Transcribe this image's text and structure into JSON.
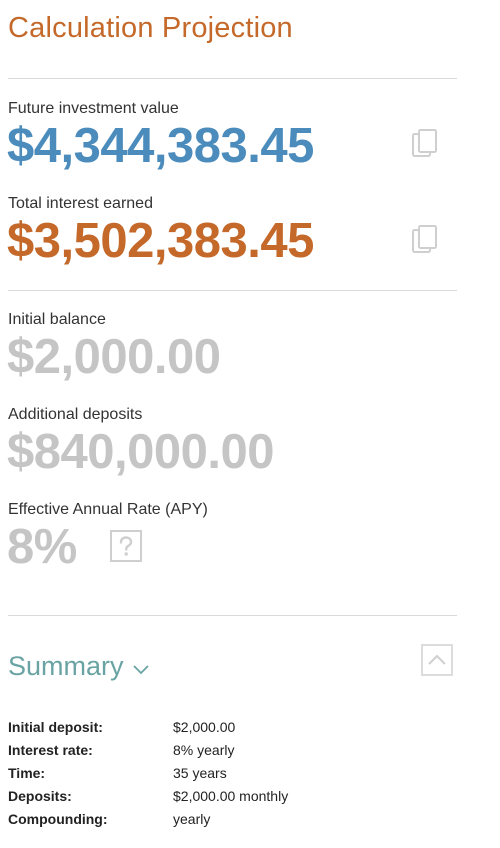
{
  "header": {
    "title": "Calculation Projection"
  },
  "results": {
    "future_value_label": "Future investment value",
    "future_value": "$4,344,383.45",
    "interest_label": "Total interest earned",
    "interest": "$3,502,383.45"
  },
  "breakdown": {
    "initial_balance_label": "Initial balance",
    "initial_balance": "$2,000.00",
    "additional_deposits_label": "Additional deposits",
    "additional_deposits": "$840,000.00",
    "apy_label": "Effective Annual Rate (APY)",
    "apy": "8%"
  },
  "summary": {
    "title": "Summary",
    "rows": [
      {
        "key": "Initial deposit:",
        "value": "$2,000.00"
      },
      {
        "key": "Interest rate:",
        "value": "8% yearly"
      },
      {
        "key": "Time:",
        "value": "35 years"
      },
      {
        "key": "Deposits:",
        "value": "$2,000.00 monthly"
      },
      {
        "key": "Compounding:",
        "value": "yearly"
      }
    ]
  },
  "colors": {
    "accent_orange": "#c4692a",
    "accent_blue": "#4b8cbc",
    "muted_grey": "#c5c5c5",
    "summary_teal": "#6aa3a3"
  },
  "icons": {
    "copy": "copy-icon",
    "help": "question-mark-icon",
    "chevron": "chevron-down-icon",
    "collapse": "chevron-up-icon"
  }
}
